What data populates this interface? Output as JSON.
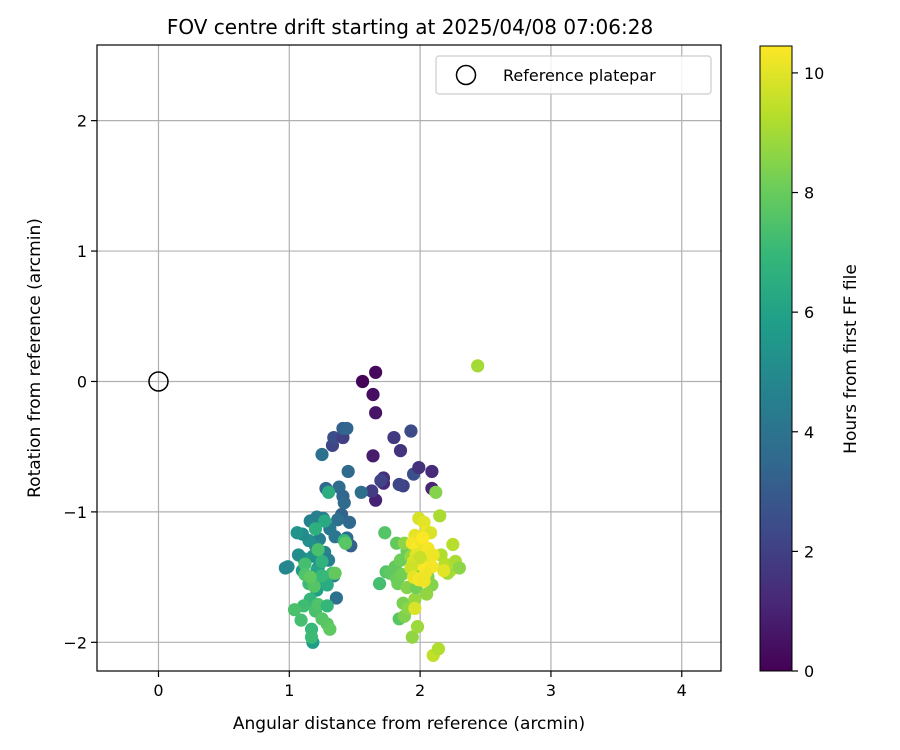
{
  "chart_data": {
    "type": "scatter",
    "title": "FOV centre drift starting at 2025/04/08 07:06:28",
    "xlabel": "Angular distance from reference (arcmin)",
    "ylabel": "Rotation from reference (arcmin)",
    "xlim": [
      -0.47,
      4.3
    ],
    "ylim": [
      -2.22,
      2.58
    ],
    "xticks": [
      0,
      1,
      2,
      3,
      4
    ],
    "xtick_labels": [
      "0",
      "1",
      "2",
      "3",
      "4"
    ],
    "yticks": [
      2,
      1,
      0,
      -1,
      -2
    ],
    "ytick_labels": [
      "2",
      "1",
      "0",
      "−1",
      "−2"
    ],
    "grid": true,
    "legend": {
      "placement": "top-right",
      "entries": [
        {
          "label": "Reference platepar",
          "marker": "open-circle"
        }
      ]
    },
    "reference_point": {
      "x": 0,
      "y": 0
    },
    "colorbar": {
      "label": "Hours from first FF file",
      "range": [
        0,
        10.45
      ],
      "ticks": [
        0,
        2,
        4,
        6,
        8,
        10
      ],
      "tick_labels": [
        "0",
        "2",
        "4",
        "6",
        "8",
        "10"
      ],
      "colormap": "viridis",
      "stops": [
        "#440154",
        "#482878",
        "#3e4989",
        "#31688e",
        "#26828e",
        "#1f9e89",
        "#35b779",
        "#6ece58",
        "#b5de2b",
        "#fde725"
      ]
    },
    "series": [
      {
        "values_format": "[x, y, hours]",
        "points": [
          [
            1.56,
            0.0,
            0.05
          ],
          [
            1.66,
            0.07,
            0.2
          ],
          [
            1.64,
            -0.1,
            0.4
          ],
          [
            1.66,
            -0.24,
            0.6
          ],
          [
            1.64,
            -0.57,
            0.8
          ],
          [
            1.66,
            -0.91,
            1.0
          ],
          [
            1.72,
            -0.78,
            1.2
          ],
          [
            1.72,
            -0.74,
            1.4
          ],
          [
            1.85,
            -0.53,
            1.6
          ],
          [
            1.8,
            -0.43,
            1.8
          ],
          [
            1.87,
            -0.8,
            2.0
          ],
          [
            1.84,
            -0.79,
            2.2
          ],
          [
            1.93,
            -0.38,
            2.4
          ],
          [
            1.95,
            -0.71,
            2.6
          ],
          [
            1.99,
            -0.66,
            1.5
          ],
          [
            2.09,
            -0.69,
            1.3
          ],
          [
            2.09,
            -0.82,
            1.1
          ],
          [
            1.63,
            -0.84,
            1.9
          ],
          [
            1.7,
            -0.76,
            2.1
          ],
          [
            1.33,
            -0.49,
            2.2
          ],
          [
            1.34,
            -0.43,
            2.5
          ],
          [
            1.41,
            -0.43,
            2.0
          ],
          [
            1.41,
            -0.36,
            3.2
          ],
          [
            1.44,
            -0.36,
            3.4
          ],
          [
            1.45,
            -0.69,
            3.6
          ],
          [
            1.55,
            -0.85,
            3.8
          ],
          [
            1.25,
            -0.56,
            3.9
          ],
          [
            1.28,
            -0.82,
            3.5
          ],
          [
            1.38,
            -0.81,
            3.7
          ],
          [
            1.41,
            -0.88,
            3.4
          ],
          [
            1.42,
            -0.93,
            3.6
          ],
          [
            1.4,
            -1.02,
            3.3
          ],
          [
            1.37,
            -1.06,
            3.9
          ],
          [
            1.46,
            -1.08,
            3.5
          ],
          [
            1.44,
            -1.2,
            3.7
          ],
          [
            1.47,
            -1.26,
            3.2
          ],
          [
            1.35,
            -1.19,
            4.1
          ],
          [
            1.31,
            -1.13,
            4.2
          ],
          [
            1.26,
            -1.05,
            4.3
          ],
          [
            1.21,
            -1.04,
            4.4
          ],
          [
            1.16,
            -1.07,
            4.6
          ],
          [
            1.23,
            -1.21,
            4.5
          ],
          [
            1.2,
            -1.26,
            4.8
          ],
          [
            1.27,
            -1.31,
            4.7
          ],
          [
            1.3,
            -1.37,
            4.4
          ],
          [
            1.34,
            -1.49,
            4.6
          ],
          [
            1.36,
            -1.66,
            3.9
          ],
          [
            1.25,
            -1.38,
            4.9
          ],
          [
            1.22,
            -1.43,
            5.0
          ],
          [
            1.15,
            -1.22,
            5.2
          ],
          [
            1.1,
            -1.17,
            5.0
          ],
          [
            1.06,
            -1.16,
            5.4
          ],
          [
            1.18,
            -1.34,
            5.3
          ],
          [
            1.11,
            -1.36,
            5.5
          ],
          [
            1.1,
            -1.45,
            5.6
          ],
          [
            1.07,
            -1.33,
            5.1
          ],
          [
            1.15,
            -1.5,
            5.7
          ],
          [
            0.99,
            -1.42,
            5.0
          ],
          [
            0.97,
            -1.43,
            4.8
          ],
          [
            1.21,
            -1.6,
            5.9
          ],
          [
            1.24,
            -1.51,
            6.0
          ],
          [
            1.21,
            -1.45,
            6.1
          ],
          [
            1.27,
            -1.07,
            6.3
          ],
          [
            1.3,
            -0.85,
            6.5
          ],
          [
            1.2,
            -1.13,
            6.6
          ],
          [
            1.25,
            -1.38,
            6.7
          ],
          [
            1.29,
            -1.56,
            6.4
          ],
          [
            1.2,
            -1.74,
            6.8
          ],
          [
            1.18,
            -2.0,
            5.8
          ],
          [
            1.16,
            -1.67,
            6.9
          ],
          [
            1.17,
            -1.9,
            7.0
          ],
          [
            1.17,
            -1.96,
            7.1
          ],
          [
            1.11,
            -1.72,
            7.2
          ],
          [
            1.09,
            -1.83,
            7.3
          ],
          [
            1.2,
            -1.76,
            7.4
          ],
          [
            1.22,
            -1.71,
            7.5
          ],
          [
            1.25,
            -1.82,
            7.6
          ],
          [
            1.29,
            -1.86,
            7.7
          ],
          [
            1.31,
            -1.9,
            7.8
          ],
          [
            1.04,
            -1.75,
            7.4
          ],
          [
            1.12,
            -1.4,
            7.3
          ],
          [
            1.15,
            -1.55,
            7.1
          ],
          [
            1.12,
            -1.48,
            7.5
          ],
          [
            1.19,
            -1.57,
            7.6
          ],
          [
            1.29,
            -1.72,
            6.9
          ],
          [
            1.33,
            -1.47,
            7.2
          ],
          [
            1.42,
            -1.22,
            7.0
          ],
          [
            1.43,
            -1.24,
            7.7
          ],
          [
            1.35,
            -1.47,
            7.9
          ],
          [
            1.22,
            -1.29,
            7.4
          ],
          [
            1.25,
            -1.49,
            7.0
          ],
          [
            1.16,
            -1.5,
            7.8
          ],
          [
            1.69,
            -1.55,
            7.3
          ],
          [
            1.74,
            -1.46,
            7.6
          ],
          [
            1.77,
            -1.47,
            7.8
          ],
          [
            1.82,
            -1.51,
            8.0
          ],
          [
            1.81,
            -1.42,
            7.9
          ],
          [
            1.83,
            -1.55,
            8.1
          ],
          [
            1.86,
            -1.48,
            8.2
          ],
          [
            1.87,
            -1.7,
            8.3
          ],
          [
            1.84,
            -1.82,
            7.7
          ],
          [
            1.88,
            -1.8,
            8.4
          ],
          [
            1.9,
            -1.58,
            8.5
          ],
          [
            1.91,
            -1.74,
            8.6
          ],
          [
            1.94,
            -1.96,
            8.7
          ],
          [
            1.96,
            -1.67,
            8.8
          ],
          [
            1.98,
            -1.88,
            8.9
          ],
          [
            1.97,
            -1.58,
            8.2
          ],
          [
            2.0,
            -1.46,
            8.3
          ],
          [
            2.06,
            -1.5,
            8.4
          ],
          [
            2.09,
            -1.56,
            8.5
          ],
          [
            2.05,
            -1.63,
            8.7
          ],
          [
            1.9,
            -1.3,
            8.0
          ],
          [
            1.85,
            -1.37,
            8.1
          ],
          [
            1.82,
            -1.24,
            7.9
          ],
          [
            1.88,
            -1.24,
            8.6
          ],
          [
            1.93,
            -1.34,
            8.8
          ],
          [
            1.73,
            -1.16,
            7.6
          ],
          [
            2.12,
            -0.85,
            8.5
          ],
          [
            2.15,
            -1.03,
            9.1
          ],
          [
            2.44,
            0.12,
            9.0
          ],
          [
            2.16,
            -1.33,
            9.2
          ],
          [
            2.19,
            -1.4,
            9.3
          ],
          [
            2.23,
            -1.45,
            9.4
          ],
          [
            2.21,
            -1.47,
            9.0
          ],
          [
            2.27,
            -1.38,
            9.1
          ],
          [
            2.3,
            -1.43,
            8.6
          ],
          [
            2.25,
            -1.25,
            9.3
          ],
          [
            2.1,
            -2.1,
            9.5
          ],
          [
            2.14,
            -2.05,
            9.2
          ],
          [
            1.99,
            -1.05,
            9.8
          ],
          [
            2.03,
            -1.08,
            10.0
          ],
          [
            2.05,
            -1.15,
            10.2
          ],
          [
            2.08,
            -1.16,
            9.9
          ],
          [
            1.96,
            -1.18,
            10.1
          ],
          [
            1.94,
            -1.24,
            10.3
          ],
          [
            1.98,
            -1.27,
            10.4
          ],
          [
            2.01,
            -1.22,
            10.2
          ],
          [
            2.03,
            -1.3,
            10.0
          ],
          [
            2.05,
            -1.33,
            9.9
          ],
          [
            2.07,
            -1.37,
            10.1
          ],
          [
            2.09,
            -1.42,
            10.3
          ],
          [
            2.04,
            -1.47,
            10.2
          ],
          [
            2.0,
            -1.4,
            10.4
          ],
          [
            1.97,
            -1.33,
            10.0
          ],
          [
            1.95,
            -1.38,
            9.8
          ],
          [
            1.93,
            -1.43,
            9.7
          ],
          [
            1.95,
            -1.5,
            10.1
          ],
          [
            1.99,
            -1.52,
            10.3
          ],
          [
            2.03,
            -1.53,
            10.2
          ],
          [
            2.18,
            -1.45,
            10.0
          ],
          [
            1.96,
            -1.74,
            9.9
          ],
          [
            2.02,
            -1.2,
            10.4
          ],
          [
            2.06,
            -1.28,
            10.3
          ],
          [
            2.1,
            -1.33,
            10.2
          ],
          [
            2.0,
            -1.35,
            9.6
          ]
        ]
      }
    ]
  }
}
